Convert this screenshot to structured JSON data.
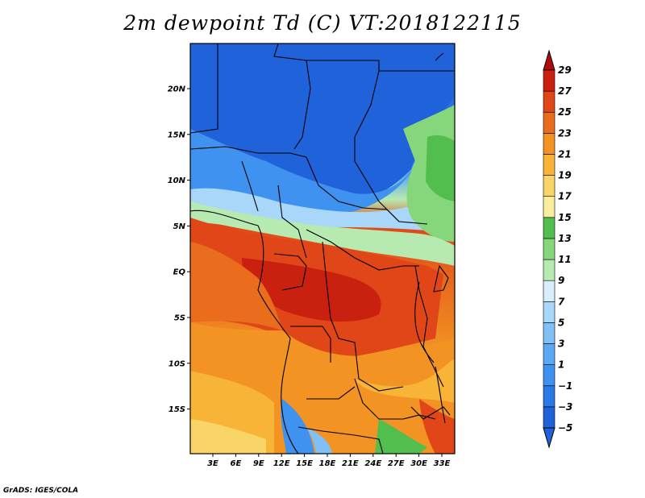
{
  "title": "2m dewpoint Td (C) VT:2018122115",
  "credit": "GrADS: IGES/COLA",
  "map": {
    "lon_labels": [
      "3E",
      "6E",
      "9E",
      "12E",
      "15E",
      "18E",
      "21E",
      "24E",
      "27E",
      "30E",
      "33E"
    ],
    "lat_labels": [
      "20N",
      "15N",
      "10N",
      "5N",
      "EQ",
      "5S",
      "10S",
      "15S"
    ]
  },
  "colorbar": {
    "labels": [
      "-5",
      "-3",
      "-1",
      "1",
      "3",
      "5",
      "7",
      "9",
      "11",
      "13",
      "15",
      "17",
      "19",
      "21",
      "23",
      "25",
      "27",
      "29"
    ],
    "colors": [
      "#1f62d9",
      "#2b79e6",
      "#3f92ef",
      "#5da8f3",
      "#80c0f7",
      "#a9d7fa",
      "#d9eefc",
      "#b7eab0",
      "#86d67c",
      "#52be4d",
      "#f9ed9e",
      "#f9d568",
      "#f7b436",
      "#f29323",
      "#ea6d1e",
      "#e04617",
      "#c92010",
      "#b00c0c"
    ]
  }
}
